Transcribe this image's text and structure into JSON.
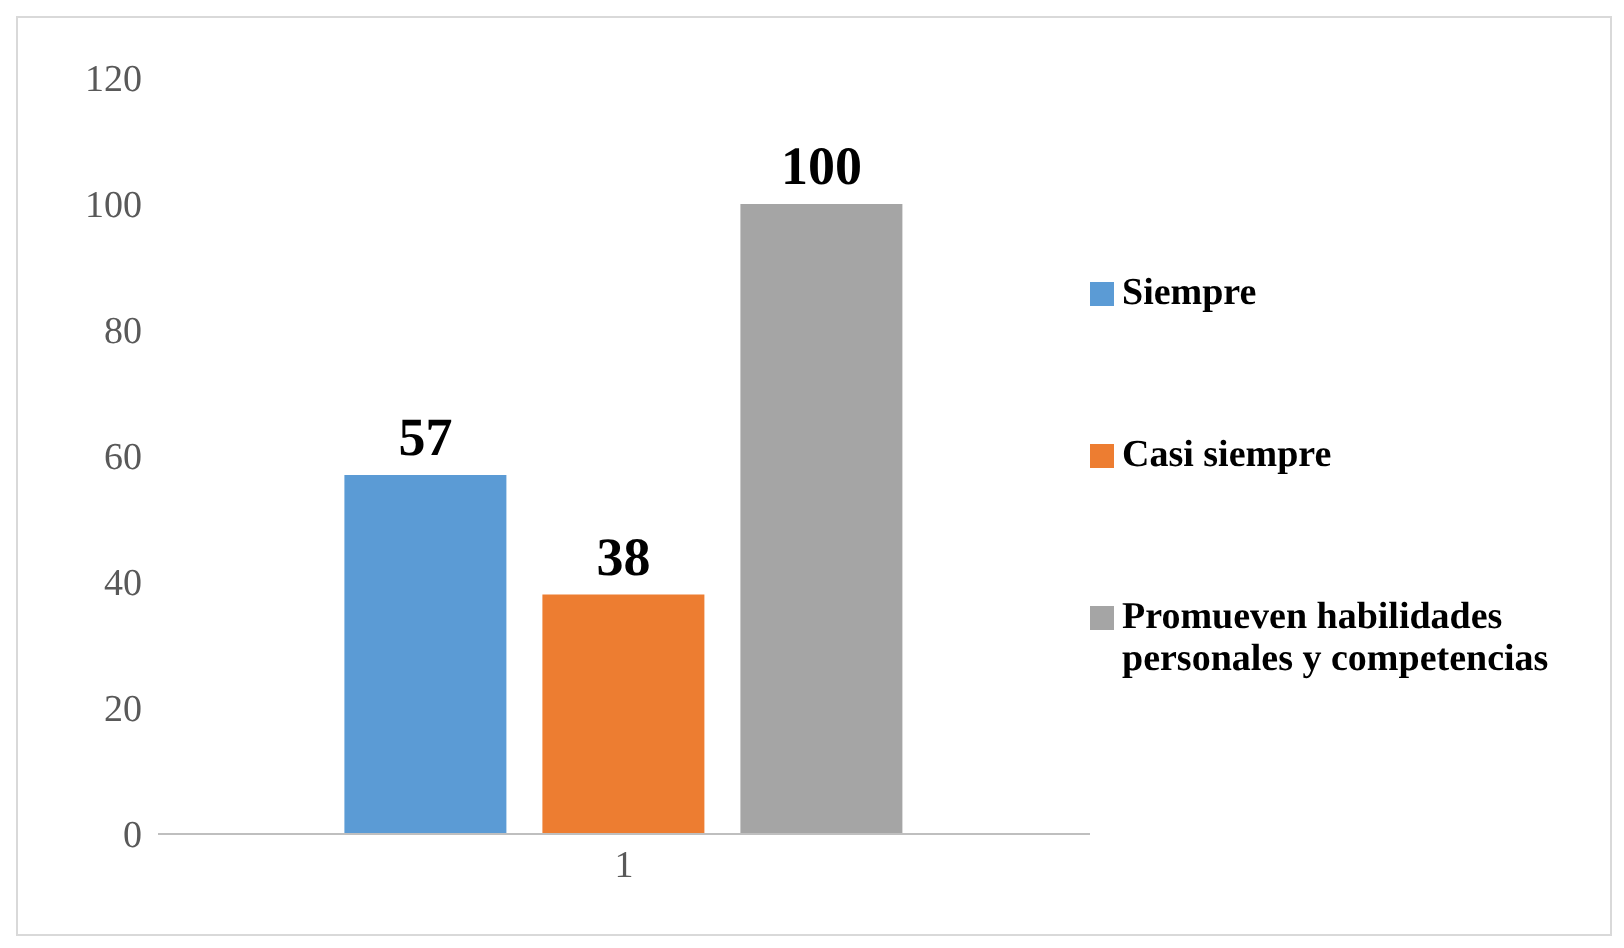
{
  "chart_data": {
    "type": "bar",
    "categories": [
      "1"
    ],
    "series": [
      {
        "name": "Siempre",
        "color": "#5b9bd5",
        "values": [
          57
        ]
      },
      {
        "name": "Casi siempre",
        "color": "#ed7d31",
        "values": [
          38
        ]
      },
      {
        "name": "Promueven habilidades personales y competencias",
        "color": "#a5a5a5",
        "values": [
          100
        ]
      }
    ],
    "ylim": [
      0,
      120
    ],
    "yticks": [
      0,
      20,
      40,
      60,
      80,
      100,
      120
    ],
    "grid": false,
    "legend": "right",
    "data_labels": true
  }
}
